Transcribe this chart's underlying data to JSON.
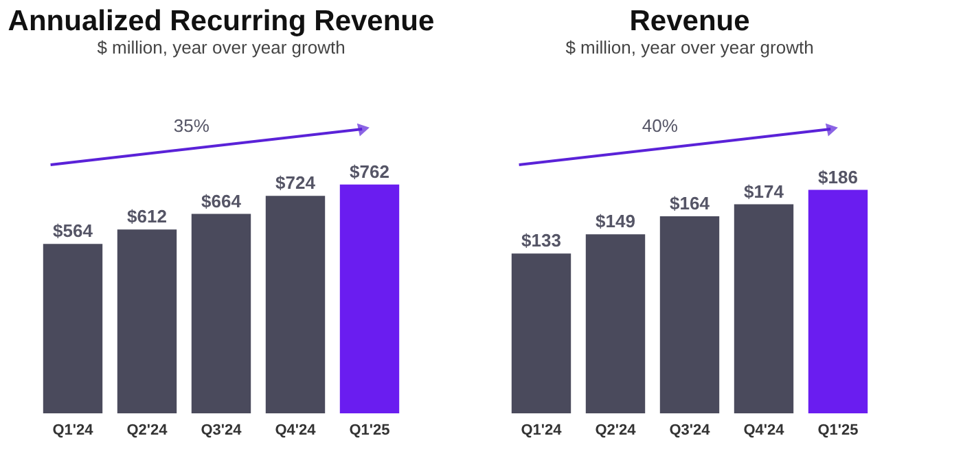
{
  "chart_data": [
    {
      "type": "bar",
      "title": "Annualized Recurring Revenue",
      "subtitle": "$ million, year over year growth",
      "categories": [
        "Q1'24",
        "Q2'24",
        "Q3'24",
        "Q4'24",
        "Q1'25"
      ],
      "values": [
        564,
        612,
        664,
        724,
        762
      ],
      "value_labels": [
        "$564",
        "$612",
        "$664",
        "$724",
        "$762"
      ],
      "colors": [
        "#4a4a5c",
        "#4a4a5c",
        "#4a4a5c",
        "#4a4a5c",
        "#6a1df0"
      ],
      "tick_labels": "x",
      "grid": false,
      "annotations": [
        "35%"
      ]
    },
    {
      "type": "bar",
      "title": "Revenue",
      "subtitle": "$ million, year over year growth",
      "categories": [
        "Q1'24",
        "Q2'24",
        "Q3'24",
        "Q4'24",
        "Q1'25"
      ],
      "values": [
        133,
        149,
        164,
        174,
        186
      ],
      "value_labels": [
        "$133",
        "$149",
        "$164",
        "$174",
        "$186"
      ],
      "colors": [
        "#4a4a5c",
        "#4a4a5c",
        "#4a4a5c",
        "#4a4a5c",
        "#6a1df0"
      ],
      "tick_labels": "x",
      "grid": false,
      "annotations": [
        "40%"
      ]
    }
  ]
}
